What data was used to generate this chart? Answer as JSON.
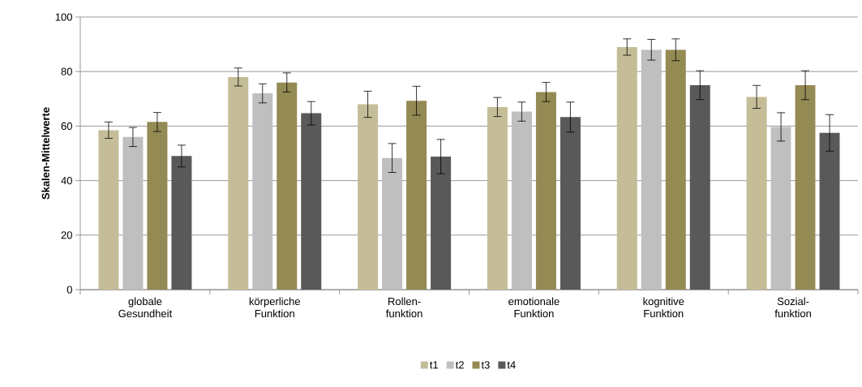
{
  "chart_data": {
    "type": "bar",
    "ylabel": "Skalen-Mittelwerte",
    "categories": [
      "globale Gesundheit",
      "körperliche Funktion",
      "Rollen-funktion",
      "emotionale Funktion",
      "kognitive Funktion",
      "Sozial-funktion"
    ],
    "series": [
      {
        "name": "t1",
        "color": "#c4bd97",
        "values": [
          58.5,
          78,
          68,
          67,
          89,
          70.7
        ],
        "errors": [
          3,
          3.3,
          4.8,
          3.5,
          3,
          4.2
        ]
      },
      {
        "name": "t2",
        "color": "#bfbfbf",
        "values": [
          56,
          72,
          48.3,
          65.3,
          88,
          59.7
        ],
        "errors": [
          3.5,
          3.5,
          5.3,
          3.5,
          3.8,
          5.2
        ]
      },
      {
        "name": "t3",
        "color": "#948a54",
        "values": [
          61.5,
          76,
          69.3,
          72.5,
          88,
          75
        ],
        "errors": [
          3.5,
          3.5,
          5.3,
          3.5,
          4,
          5.3
        ]
      },
      {
        "name": "t4",
        "color": "#595959",
        "values": [
          49,
          64.7,
          48.8,
          63.3,
          75,
          57.5
        ],
        "errors": [
          4,
          4.3,
          6.3,
          5.5,
          5.3,
          6.7
        ]
      }
    ],
    "ylim": [
      0,
      100
    ],
    "yticks": [
      0,
      20,
      40,
      60,
      80,
      100
    ],
    "grid": "y",
    "legend": "bottom"
  }
}
